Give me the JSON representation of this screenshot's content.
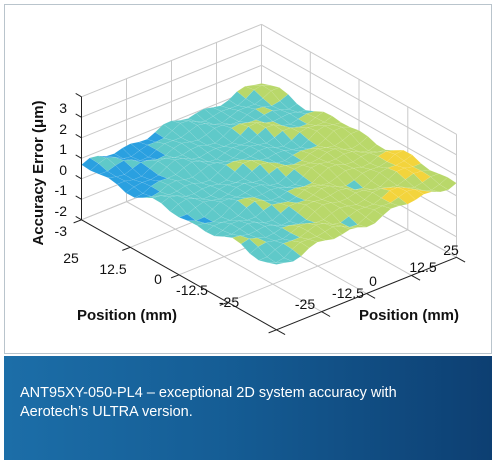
{
  "chart_data": {
    "type": "surface3d",
    "zlabel": "Accuracy Error (μm)",
    "xlabel": "Position (mm)",
    "ylabel": "Position (mm)",
    "z_ticks": [
      "3",
      "2",
      "1",
      "0",
      "-1",
      "-2",
      "-3"
    ],
    "x_ticks": [
      "25",
      "12.5",
      "0",
      "-12.5",
      "-25"
    ],
    "y_ticks": [
      "25",
      "12.5",
      "0",
      "-12.5",
      "-25"
    ],
    "xlim": [
      -25,
      25
    ],
    "ylim": [
      -25,
      25
    ],
    "zlim": [
      -3,
      3
    ],
    "grid": true,
    "colormap": [
      "#2166c8",
      "#2aa0e0",
      "#5fc9c9",
      "#b9d86a",
      "#f3d43c",
      "#f29b30",
      "#e2582a"
    ],
    "surface_z_range": [
      -0.8,
      1.6
    ]
  },
  "caption": {
    "line1": "ANT95XY-050-PL4 – exceptional 2D system accuracy with",
    "line2": "Aerotech’s ULTRA version."
  }
}
